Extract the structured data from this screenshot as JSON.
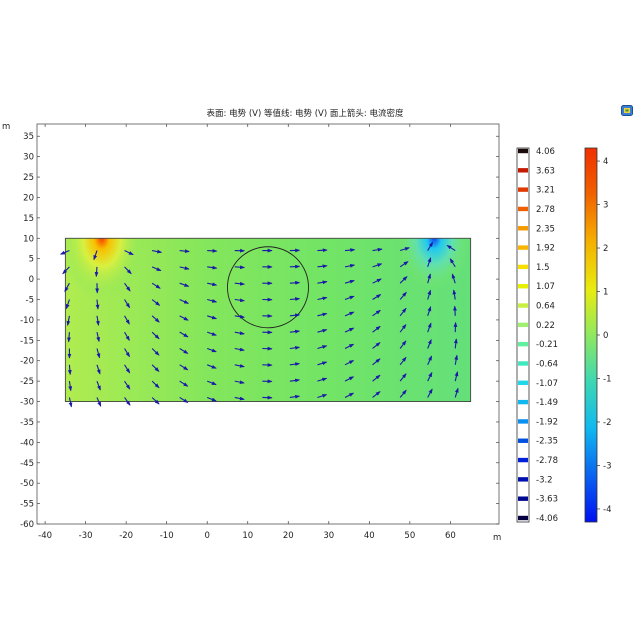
{
  "chart_data": {
    "type": "heatmap",
    "title": "表面: 电势 (V)  等值线: 电势 (V)  面上箭头: 电流密度",
    "xlabel": "m",
    "ylabel": "m",
    "xlim": [
      -42,
      72
    ],
    "ylim": [
      -60,
      38
    ],
    "x_ticks": [
      -40,
      -30,
      -20,
      -10,
      0,
      10,
      20,
      30,
      40,
      50,
      60
    ],
    "y_ticks": [
      35,
      30,
      25,
      20,
      15,
      10,
      5,
      0,
      -5,
      -10,
      -15,
      -20,
      -25,
      -30,
      -35,
      -40,
      -45,
      -50,
      -55,
      -60
    ],
    "domain": {
      "x": [
        -35,
        65
      ],
      "y": [
        -30,
        10
      ]
    },
    "circle": {
      "center": [
        15,
        -2
      ],
      "radius": 10
    },
    "source_electrode": {
      "x": -26,
      "y": 10,
      "potential": 4.06
    },
    "sink_electrode": {
      "x": 56,
      "y": 10,
      "potential": -4.06
    },
    "contour_legend": {
      "levels": [
        4.06,
        3.63,
        3.21,
        2.78,
        2.35,
        1.92,
        1.5,
        1.07,
        0.64,
        0.22,
        -0.21,
        -0.64,
        -1.07,
        -1.49,
        -1.92,
        -2.35,
        -2.78,
        -3.2,
        -3.63,
        -4.06
      ],
      "labels": [
        "4.06",
        "3.63",
        "3.21",
        "2.78",
        "2.35",
        "1.92",
        "1.5",
        "1.07",
        "0.64",
        "0.22",
        "-0.21",
        "-0.64",
        "-1.07",
        "-1.49",
        "-1.92",
        "-2.35",
        "-2.78",
        "-3.2",
        "-3.63",
        "-4.06"
      ],
      "colors": [
        "#1a0a0a",
        "#c41a00",
        "#e03a00",
        "#f06000",
        "#f59a00",
        "#f8b400",
        "#f7e000",
        "#e8f000",
        "#c8f040",
        "#a0f070",
        "#60f0a0",
        "#40e8c0",
        "#20d8e8",
        "#10b8f0",
        "#0a90f0",
        "#0050e0",
        "#0020d8",
        "#0010b0",
        "#000890",
        "#060040"
      ]
    },
    "surface_legend": {
      "ticks": [
        4,
        3,
        2,
        1,
        0,
        -1,
        -2,
        -3,
        -4
      ],
      "labels": [
        "4",
        "3",
        "2",
        "1",
        "0",
        "-1",
        "-2",
        "-3",
        "-4"
      ],
      "range": [
        -4.3,
        4.3
      ],
      "colors": [
        "#f04000",
        "#f06000",
        "#f5a000",
        "#f0e000",
        "#b8ec30",
        "#70e070",
        "#40d8b0",
        "#10c0e8",
        "#0a80f0",
        "#0030f0"
      ]
    },
    "field_color": "#7ee65e",
    "arrow_color": "#1a1aa8"
  }
}
